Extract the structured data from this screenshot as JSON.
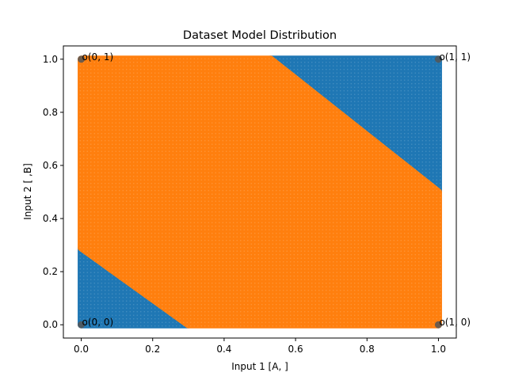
{
  "chart_data": {
    "type": "scatter",
    "title": "Dataset Model Distribution",
    "xlabel": "Input 1 [A, ]",
    "ylabel": "Input 2 [ ,B]",
    "xlim": [
      -0.05,
      1.05
    ],
    "ylim": [
      -0.05,
      1.05
    ],
    "xticks": [
      "0.0",
      "0.2",
      "0.4",
      "0.6",
      "0.8",
      "1.0"
    ],
    "yticks": [
      "0.0",
      "0.2",
      "0.4",
      "0.6",
      "0.8",
      "1.0"
    ],
    "grid": false,
    "regions": [
      {
        "class": 0,
        "color": "#1f77b4",
        "polygon": [
          [
            0,
            0
          ],
          [
            0.3,
            0
          ],
          [
            0,
            0.29
          ]
        ]
      },
      {
        "class": 0,
        "color": "#1f77b4",
        "polygon": [
          [
            0.53,
            1
          ],
          [
            1,
            1
          ],
          [
            1,
            0.5
          ]
        ]
      },
      {
        "class": 1,
        "color": "#ff7f0e",
        "polygon": [
          [
            0.3,
            0
          ],
          [
            1,
            0
          ],
          [
            1,
            0.5
          ],
          [
            0.53,
            1
          ],
          [
            0,
            1
          ],
          [
            0,
            0.29
          ]
        ]
      }
    ],
    "corner_points": [
      {
        "x": 0,
        "y": 0,
        "label": "o(0, 0)"
      },
      {
        "x": 0,
        "y": 1,
        "label": "o(0, 1)"
      },
      {
        "x": 1,
        "y": 0,
        "label": "o(1, 0)"
      },
      {
        "x": 1,
        "y": 1,
        "label": "o(1, 1)"
      }
    ]
  }
}
